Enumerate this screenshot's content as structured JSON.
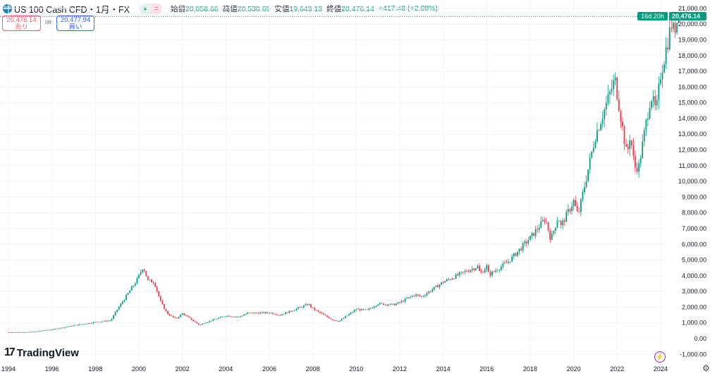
{
  "header": {
    "symbol": "US 100 Cash CFD・1月・FX",
    "icon_text": "100",
    "open_label": "始値",
    "open": "20,058.66",
    "high_label": "高値",
    "high": "20,530.69",
    "low_label": "安値",
    "low": "19,643.13",
    "close_label": "終値",
    "close": "20,476.14",
    "change": "+417.48 (+2.08%)"
  },
  "trade": {
    "sell_price": "20,476.14",
    "sell_label": "売り",
    "spread": "180",
    "buy_price": "20,477.94",
    "buy_label": "買い"
  },
  "last_price": {
    "price": "20,476.14",
    "countdown": "16d 20h"
  },
  "brand": "TradingView",
  "colors": {
    "up": "#089981",
    "down": "#f23645",
    "grid": "#f0f3fa"
  },
  "chart_data": {
    "type": "candlestick",
    "title": "US 100 Cash CFD monthly",
    "y_ticks": [
      "21,000.00",
      "20,000.00",
      "19,000.00",
      "18,000.00",
      "17,000.00",
      "16,000.00",
      "15,000.00",
      "14,000.00",
      "13,000.00",
      "12,000.00",
      "11,000.00",
      "10,000.00",
      "9,000.00",
      "8,000.00",
      "7,000.00",
      "6,000.00",
      "5,000.00",
      "4,000.00",
      "3,000.00",
      "2,000.00",
      "1,000.00",
      "0.00",
      "-1,000.00"
    ],
    "ylim": [
      -1000,
      21000
    ],
    "x_ticks": [
      "1994",
      "1996",
      "1998",
      "2000",
      "2002",
      "2004",
      "2006",
      "2008",
      "2010",
      "2012",
      "2014",
      "2016",
      "2018",
      "2020",
      "2022",
      "2024"
    ],
    "xlim": [
      1994,
      2024.9
    ],
    "close_anchors": [
      [
        1994,
        400
      ],
      [
        1995,
        410
      ],
      [
        1996,
        580
      ],
      [
        1997,
        830
      ],
      [
        1998,
        1050
      ],
      [
        1998.7,
        1150
      ],
      [
        1999,
        1840
      ],
      [
        1999.9,
        3700
      ],
      [
        2000.2,
        4600
      ],
      [
        2000.4,
        3700
      ],
      [
        2000.7,
        3600
      ],
      [
        2001,
        2340
      ],
      [
        2001.3,
        1600
      ],
      [
        2001.7,
        1250
      ],
      [
        2002,
        1600
      ],
      [
        2002.8,
        850
      ],
      [
        2003,
        1000
      ],
      [
        2004,
        1460
      ],
      [
        2004.6,
        1380
      ],
      [
        2005,
        1620
      ],
      [
        2006,
        1650
      ],
      [
        2006.5,
        1500
      ],
      [
        2007,
        1760
      ],
      [
        2007.8,
        2200
      ],
      [
        2008,
        1900
      ],
      [
        2008.9,
        1200
      ],
      [
        2009.2,
        1100
      ],
      [
        2010,
        1860
      ],
      [
        2010.5,
        1800
      ],
      [
        2011,
        2220
      ],
      [
        2011.7,
        2150
      ],
      [
        2012,
        2300
      ],
      [
        2012.7,
        2800
      ],
      [
        2013,
        2660
      ],
      [
        2014,
        3600
      ],
      [
        2015,
        4250
      ],
      [
        2015.6,
        4600
      ],
      [
        2015.7,
        4100
      ],
      [
        2016,
        4600
      ],
      [
        2016.1,
        4050
      ],
      [
        2017,
        4900
      ],
      [
        2018,
        6400
      ],
      [
        2018.7,
        7650
      ],
      [
        2018.95,
        6300
      ],
      [
        2019.3,
        7800
      ],
      [
        2019.4,
        7100
      ],
      [
        2020,
        8750
      ],
      [
        2020.2,
        7800
      ],
      [
        2021,
        12900
      ],
      [
        2021.9,
        16500
      ],
      [
        2022.45,
        11600
      ],
      [
        2022.6,
        13000
      ],
      [
        2022.8,
        10900
      ],
      [
        2023,
        10950
      ],
      [
        2023.55,
        15500
      ],
      [
        2023.8,
        14400
      ],
      [
        2024,
        16800
      ],
      [
        2024.5,
        20000
      ],
      [
        2024.6,
        19500
      ],
      [
        2024.7,
        20058
      ],
      [
        2024.83,
        20476
      ]
    ]
  }
}
